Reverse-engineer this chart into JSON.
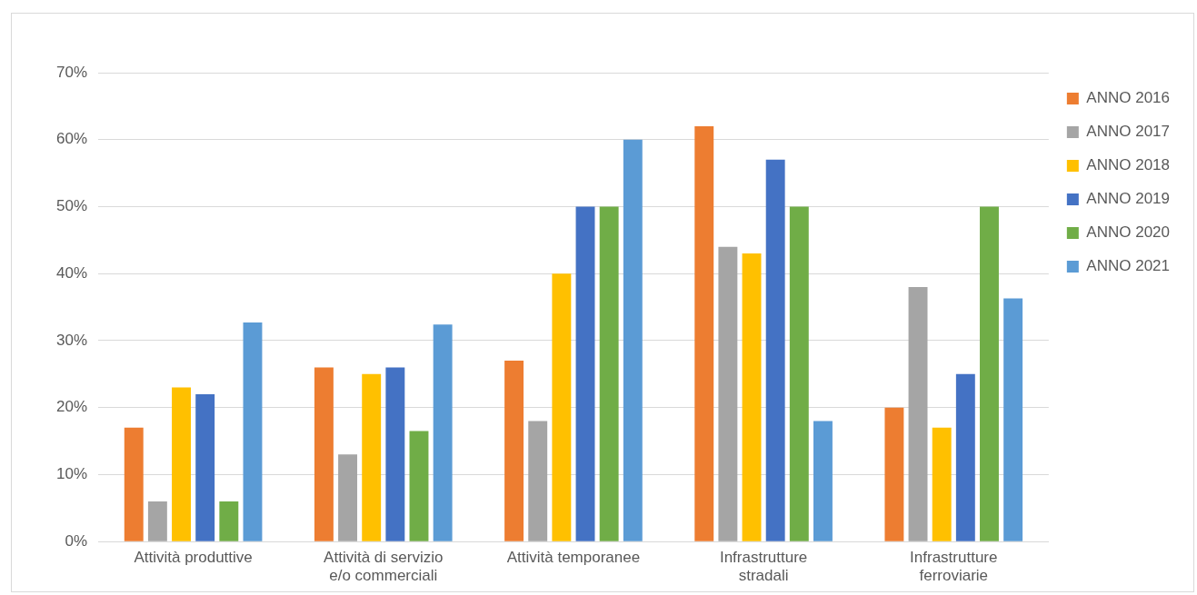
{
  "chart_data": {
    "type": "bar",
    "categories": [
      "Attività produttive",
      "Attività di servizio e/o commerciali",
      "Attività temporanee",
      "Infrastrutture stradali",
      "Infrastrutture ferroviarie"
    ],
    "series": [
      {
        "name": "ANNO 2016",
        "color": "#ed7d31",
        "values": [
          17,
          26,
          27,
          62,
          20
        ]
      },
      {
        "name": "ANNO 2017",
        "color": "#a5a5a5",
        "values": [
          6,
          13,
          18,
          44,
          38
        ]
      },
      {
        "name": "ANNO 2018",
        "color": "#ffc000",
        "values": [
          23,
          25,
          40,
          43,
          17
        ]
      },
      {
        "name": "ANNO 2019",
        "color": "#4472c4",
        "values": [
          22,
          26,
          50,
          57,
          25
        ]
      },
      {
        "name": "ANNO 2020",
        "color": "#70ad47",
        "values": [
          6,
          16.5,
          50,
          50,
          50
        ]
      },
      {
        "name": "ANNO 2021",
        "color": "#5b9bd5",
        "values": [
          32.7,
          32.4,
          60,
          18,
          36.3
        ]
      }
    ],
    "ylim": [
      0,
      70
    ],
    "yticks": [
      {
        "value": 0,
        "label": "0%"
      },
      {
        "value": 10,
        "label": "10%"
      },
      {
        "value": 20,
        "label": "20%"
      },
      {
        "value": 30,
        "label": "30%"
      },
      {
        "value": 40,
        "label": "40%"
      },
      {
        "value": 50,
        "label": "50%"
      },
      {
        "value": 60,
        "label": "60%"
      },
      {
        "value": 70,
        "label": "70%"
      }
    ],
    "grid": "y",
    "legend": "right"
  }
}
